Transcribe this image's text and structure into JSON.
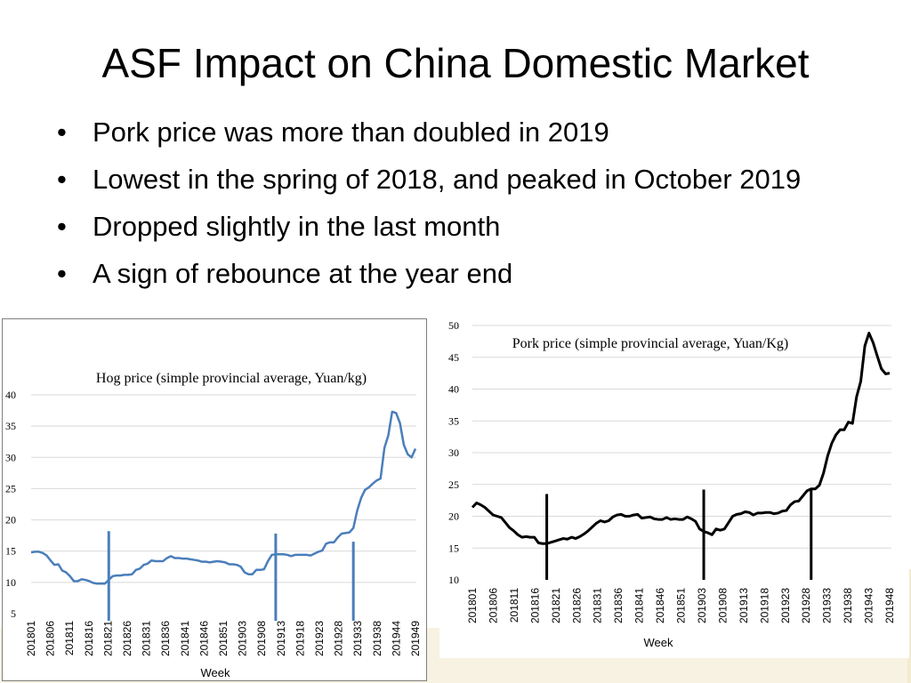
{
  "slide": {
    "title": "ASF Impact on China Domestic Market",
    "bullets": [
      "Pork price was more than doubled in 2019",
      "Lowest in the spring of 2018, and peaked in October 2019",
      "Dropped slightly in the last month",
      "A sign of rebounce at the year end"
    ],
    "bullet_symbol": "•"
  },
  "colors": {
    "hog_line": "#4a7ebb",
    "pork_line": "#000000",
    "grid": "#d9d9d9"
  },
  "chart_data": [
    {
      "type": "line",
      "title": "Hog price (simple provincial average, Yuan/kg)",
      "xlabel": "Week",
      "ylabel": "",
      "ylim": [
        5,
        40
      ],
      "yticks": [
        5,
        10,
        15,
        20,
        25,
        30,
        35,
        40
      ],
      "grid": true,
      "tick_labels": [
        "201801",
        "201806",
        "201811",
        "201816",
        "201821",
        "201826",
        "201831",
        "201836",
        "201841",
        "201846",
        "201851",
        "201903",
        "201908",
        "201913",
        "201918",
        "201923",
        "201928",
        "201933",
        "201938",
        "201944",
        "201949"
      ],
      "markers": [
        {
          "index": 20,
          "label": "",
          "top": 18.2
        },
        {
          "index": 63,
          "label": "",
          "top": 17.8
        },
        {
          "index": 83,
          "label": "",
          "top": 16.5
        }
      ],
      "values": [
        14.8,
        14.9,
        14.9,
        14.7,
        14.3,
        13.5,
        12.8,
        12.9,
        11.9,
        11.6,
        11.0,
        10.2,
        10.2,
        10.5,
        10.4,
        10.2,
        9.9,
        9.8,
        9.8,
        9.8,
        10.4,
        11.0,
        11.1,
        11.1,
        11.2,
        11.2,
        11.3,
        12.0,
        12.2,
        12.8,
        13.0,
        13.5,
        13.4,
        13.4,
        13.4,
        13.9,
        14.2,
        13.9,
        13.9,
        13.8,
        13.8,
        13.7,
        13.6,
        13.5,
        13.3,
        13.3,
        13.2,
        13.3,
        13.4,
        13.3,
        13.2,
        12.9,
        12.9,
        12.8,
        12.5,
        11.6,
        11.3,
        11.3,
        12.0,
        12.0,
        12.1,
        13.4,
        14.4,
        14.5,
        14.5,
        14.5,
        14.4,
        14.2,
        14.4,
        14.4,
        14.4,
        14.4,
        14.3,
        14.6,
        14.9,
        15.1,
        16.2,
        16.4,
        16.4,
        17.2,
        17.8,
        17.9,
        18.0,
        18.7,
        21.5,
        23.5,
        24.8,
        25.2,
        25.8,
        26.3,
        26.6,
        31.5,
        33.5,
        37.3,
        37.1,
        35.5,
        32.0,
        30.5,
        30.0,
        31.4
      ]
    },
    {
      "type": "line",
      "title": "Pork price (simple provincial average, Yuan/Kg)",
      "xlabel": "Week",
      "ylabel": "",
      "ylim": [
        10,
        50
      ],
      "yticks": [
        10,
        15,
        20,
        25,
        30,
        35,
        40,
        45,
        50
      ],
      "grid": true,
      "tick_labels": [
        "201801",
        "201806",
        "201811",
        "201816",
        "201821",
        "201826",
        "201831",
        "201836",
        "201841",
        "201846",
        "201851",
        "201903",
        "201908",
        "201913",
        "201918",
        "201923",
        "201928",
        "201933",
        "201938",
        "201943",
        "201948"
      ],
      "markers": [
        {
          "index": 18,
          "label": "",
          "top": 23.5
        },
        {
          "index": 56,
          "label": "",
          "top": 24.2
        },
        {
          "index": 82,
          "label": "",
          "top": 24.2
        }
      ],
      "values": [
        21.4,
        22.1,
        21.8,
        21.4,
        20.8,
        20.2,
        20.0,
        19.8,
        19.0,
        18.2,
        17.7,
        17.1,
        16.7,
        16.8,
        16.7,
        16.7,
        15.8,
        15.7,
        15.7,
        15.9,
        16.1,
        16.3,
        16.5,
        16.4,
        16.7,
        16.5,
        16.8,
        17.2,
        17.7,
        18.3,
        18.9,
        19.3,
        19.1,
        19.3,
        19.9,
        20.2,
        20.3,
        20.0,
        20.0,
        20.2,
        20.3,
        19.7,
        19.8,
        19.9,
        19.6,
        19.5,
        19.5,
        19.8,
        19.5,
        19.6,
        19.5,
        19.5,
        19.9,
        19.6,
        19.2,
        18.0,
        17.6,
        17.4,
        17.1,
        18.0,
        17.8,
        18.0,
        19.0,
        20.0,
        20.3,
        20.4,
        20.7,
        20.6,
        20.2,
        20.5,
        20.5,
        20.6,
        20.6,
        20.4,
        20.5,
        20.8,
        20.9,
        21.8,
        22.3,
        22.4,
        23.2,
        24.0,
        24.3,
        24.3,
        24.9,
        26.8,
        29.5,
        31.5,
        32.8,
        33.6,
        33.6,
        34.8,
        34.6,
        38.8,
        41.2,
        46.8,
        48.8,
        47.3,
        45.2,
        43.2,
        42.4,
        42.5
      ]
    }
  ]
}
